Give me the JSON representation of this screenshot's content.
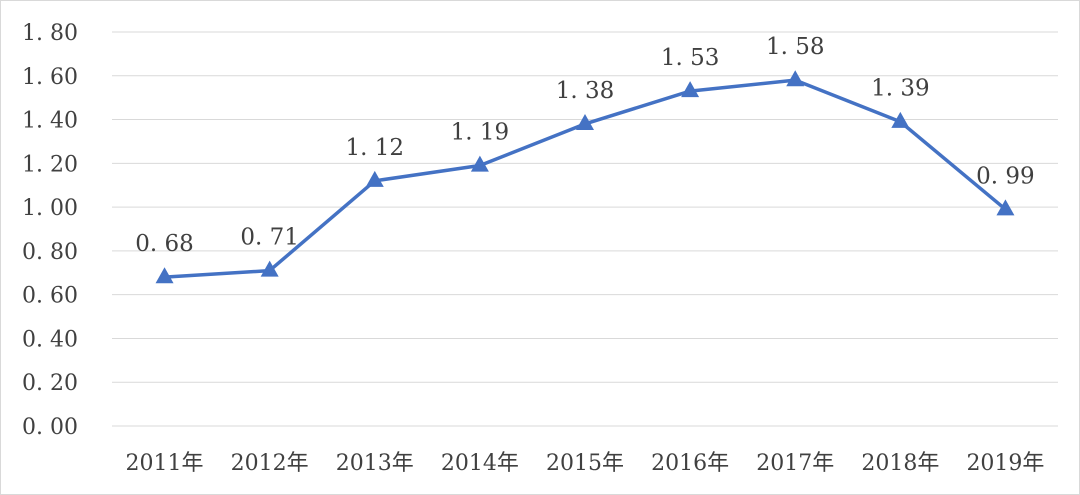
{
  "chart_data": {
    "type": "line",
    "categories": [
      "2011年",
      "2012年",
      "2013年",
      "2014年",
      "2015年",
      "2016年",
      "2017年",
      "2018年",
      "2019年"
    ],
    "series": [
      {
        "values": [
          0.68,
          0.71,
          1.12,
          1.19,
          1.38,
          1.53,
          1.58,
          1.39,
          0.99
        ],
        "labels": [
          "0. 68",
          "0. 71",
          "1. 12",
          "1. 19",
          "1. 38",
          "1. 53",
          "1. 58",
          "1. 39",
          "0. 99"
        ],
        "color": "#4472c4",
        "marker": "triangle"
      }
    ],
    "yticks": [
      "0. 00",
      "0. 20",
      "0. 40",
      "0. 60",
      "0. 80",
      "1. 00",
      "1. 20",
      "1. 40",
      "1. 60",
      "1. 80"
    ],
    "ylim": [
      0,
      1.8
    ],
    "grid": true,
    "legend": "none"
  }
}
